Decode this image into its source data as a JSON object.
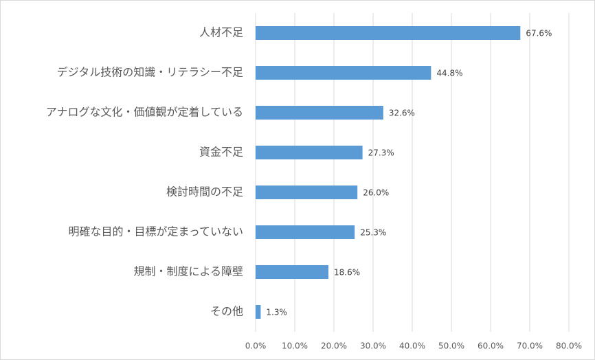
{
  "chart_data": {
    "type": "bar",
    "orientation": "horizontal",
    "categories": [
      "人材不足",
      "デジタル技術の知識・リテラシー不足",
      "アナログな文化・価値観が定着している",
      "資金不足",
      "検討時間の不足",
      "明確な目的・目標が定まっていない",
      "規制・制度による障壁",
      "その他"
    ],
    "values": [
      67.6,
      44.8,
      32.6,
      27.3,
      26.0,
      25.3,
      18.6,
      1.3
    ],
    "value_labels": [
      "67.6%",
      "44.8%",
      "32.6%",
      "27.3%",
      "26.0%",
      "25.3%",
      "18.6%",
      "1.3%"
    ],
    "color": "#5b9bd5",
    "xlim": [
      0,
      80
    ],
    "xticks": [
      {
        "value": 0,
        "label": "0.0%"
      },
      {
        "value": 10,
        "label": "10.0%"
      },
      {
        "value": 20,
        "label": "20.0%"
      },
      {
        "value": 30,
        "label": "30.0%"
      },
      {
        "value": 40,
        "label": "40.0%"
      },
      {
        "value": 50,
        "label": "50.0%"
      },
      {
        "value": 60,
        "label": "60.0%"
      },
      {
        "value": 70,
        "label": "70.0%"
      },
      {
        "value": 80,
        "label": "80.0%"
      }
    ],
    "grid": true
  }
}
